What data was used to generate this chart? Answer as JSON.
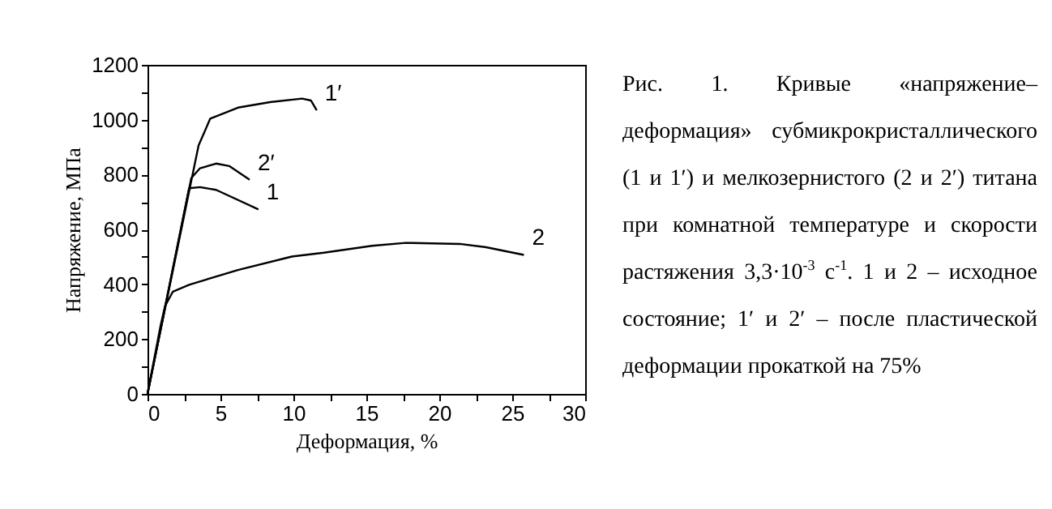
{
  "chart_data": {
    "type": "line",
    "xlabel": "Деформация, %",
    "ylabel": "Напряжение, МПа",
    "xlim": [
      0,
      30
    ],
    "ylim": [
      0,
      1200
    ],
    "xticks": [
      0,
      {
        "value": 2.5,
        "label": null
      },
      5,
      {
        "value": 7.5,
        "label": null
      },
      10,
      {
        "value": 12.5,
        "label": null
      },
      15,
      {
        "value": 17.5,
        "label": null
      },
      20,
      {
        "value": 22.5,
        "label": null
      },
      25,
      {
        "value": 27.5,
        "label": null
      },
      30
    ],
    "yticks": [
      0,
      {
        "value": 100,
        "label": null
      },
      200,
      {
        "value": 300,
        "label": null
      },
      400,
      {
        "value": 500,
        "label": null
      },
      600,
      {
        "value": 700,
        "label": null
      },
      800,
      {
        "value": 900,
        "label": null
      },
      1000,
      {
        "value": 1100,
        "label": null
      },
      1200
    ],
    "grid": false,
    "legend": false,
    "marker": "none",
    "line_style": "solid",
    "series": [
      {
        "name": "1′",
        "color": "#000000",
        "x": [
          0,
          3.5,
          4.3,
          6.2,
          8.4,
          10.6,
          11.2,
          11.6
        ],
        "values": [
          0,
          906,
          1004,
          1044,
          1064,
          1077,
          1070,
          1034
        ]
      },
      {
        "name": "2′",
        "color": "#000000",
        "x": [
          0,
          3.0,
          3.6,
          4.7,
          5.6,
          7.0
        ],
        "values": [
          0,
          787,
          823,
          840,
          831,
          781
        ]
      },
      {
        "name": "1",
        "color": "#000000",
        "x": [
          0,
          2.85,
          3.6,
          4.7,
          7.6
        ],
        "values": [
          0,
          750,
          754,
          744,
          673
        ]
      },
      {
        "name": "2",
        "color": "#000000",
        "x": [
          0,
          0.9,
          1.2,
          1.74,
          2.85,
          6.2,
          9.9,
          12.1,
          15.4,
          17.7,
          21.4,
          23.2,
          25.8
        ],
        "values": [
          0,
          250,
          320,
          373,
          398,
          452,
          501,
          515,
          540,
          551,
          547,
          535,
          507
        ]
      }
    ],
    "annotations": [
      "Рис. 1. Кривые «напряжение–деформация» субмикрокристаллического (1 и 1′) и мелкозернистого (2 и 2′) титана при комнатной температуре и скорости растяжения 3,3·10$^{-3}$ с$^{-1}$. 1 и 2 – исходное состояние; 1′ и 2′ – после пластической деформации прокаткой на 75%"
    ]
  }
}
